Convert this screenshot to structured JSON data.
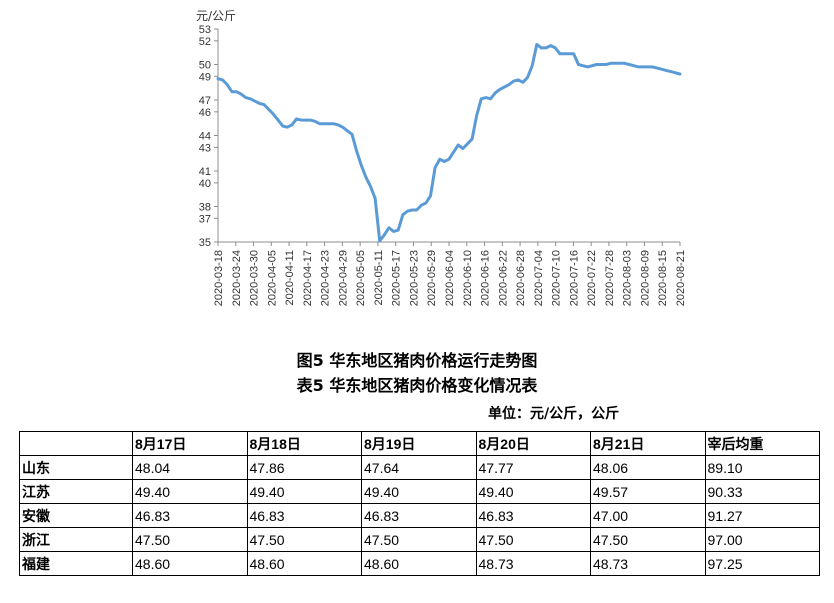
{
  "chart_data": {
    "type": "line",
    "title": "",
    "xlabel": "",
    "ylabel": "元/公斤",
    "ylim": [
      35,
      53
    ],
    "y_ticks": [
      35,
      37,
      38,
      40,
      41,
      43,
      44,
      46,
      47,
      49,
      50,
      52,
      53
    ],
    "x_tick_labels": [
      "2020-03-18",
      "2020-03-24",
      "2020-03-30",
      "2020-04-05",
      "2020-04-11",
      "2020-04-17",
      "2020-04-23",
      "2020-04-29",
      "2020-05-05",
      "2020-05-11",
      "2020-05-17",
      "2020-05-23",
      "2020-05-29",
      "2020-06-04",
      "2020-06-10",
      "2020-06-16",
      "2020-06-22",
      "2020-06-28",
      "2020-07-04",
      "2020-07-10",
      "2020-07-16",
      "2020-07-22",
      "2020-07-28",
      "2020-08-03",
      "2020-08-09",
      "2020-08-15",
      "2020-08-21"
    ],
    "grid": false,
    "series_color": "#5B9BD5",
    "series": [
      {
        "name": "",
        "values": [
          48.8,
          48.7,
          48.3,
          47.7,
          47.7,
          47.5,
          47.2,
          47.1,
          46.9,
          46.7,
          46.6,
          46.2,
          45.8,
          45.3,
          44.8,
          44.7,
          44.9,
          45.4,
          45.3,
          45.3,
          45.3,
          45.2,
          45.0,
          45.0,
          45.0,
          45.0,
          44.9,
          44.7,
          44.4,
          44.1,
          42.7,
          41.5,
          40.5,
          39.7,
          38.7,
          35.1,
          35.6,
          36.2,
          35.9,
          36.0,
          37.3,
          37.6,
          37.7,
          37.7,
          38.1,
          38.3,
          38.9,
          41.3,
          42.0,
          41.8,
          42.0,
          42.6,
          43.2,
          42.9,
          43.3,
          43.7,
          45.7,
          47.1,
          47.2,
          47.1,
          47.6,
          47.9,
          48.1,
          48.3,
          48.6,
          48.7,
          48.5,
          48.9,
          49.9,
          51.7,
          51.4,
          51.4,
          51.6,
          51.4,
          50.9,
          50.9,
          50.9,
          50.9,
          50.0,
          49.9,
          49.8,
          49.9,
          50.0,
          50.0,
          50.0,
          50.1,
          50.1,
          50.1,
          50.1,
          50.0,
          49.9,
          49.8,
          49.8,
          49.8,
          49.8,
          49.7,
          49.6,
          49.5,
          49.4,
          49.3,
          49.2
        ]
      }
    ]
  },
  "captions": {
    "figure": "图5 华东地区猪肉价格运行走势图",
    "table": "表5 华东地区猪肉价格变化情况表",
    "unit": "单位：元/公斤，公斤"
  },
  "table": {
    "headers": [
      "",
      "8月17日",
      "8月18日",
      "8月19日",
      "8月20日",
      "8月21日",
      "宰后均重"
    ],
    "rows": [
      [
        "山东",
        "48.04",
        "47.86",
        "47.64",
        "47.77",
        "48.06",
        "89.10"
      ],
      [
        "江苏",
        "49.40",
        "49.40",
        "49.40",
        "49.40",
        "49.57",
        "90.33"
      ],
      [
        "安徽",
        "46.83",
        "46.83",
        "46.83",
        "46.83",
        "47.00",
        "91.27"
      ],
      [
        "浙江",
        "47.50",
        "47.50",
        "47.50",
        "47.50",
        "47.50",
        "97.00"
      ],
      [
        "福建",
        "48.60",
        "48.60",
        "48.60",
        "48.73",
        "48.73",
        "97.25"
      ]
    ]
  }
}
